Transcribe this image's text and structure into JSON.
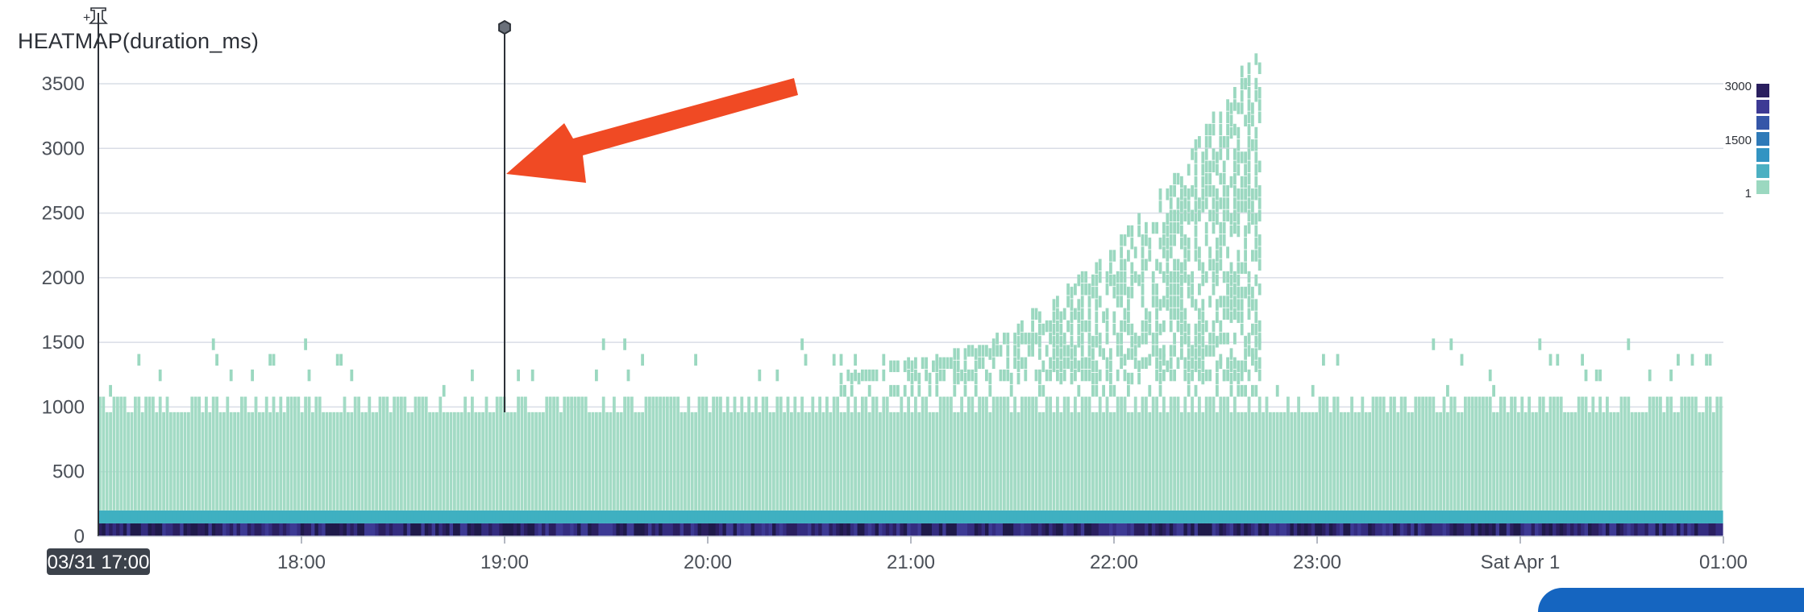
{
  "chart_data": {
    "type": "heatmap",
    "title": "HEATMAP(duration_ms)",
    "y_ticks": [
      0,
      500,
      1000,
      1500,
      2000,
      2500,
      3000,
      3500
    ],
    "ylim": [
      0,
      3700
    ],
    "x_start_label": "03/31 17:00",
    "x_ticks": [
      "18:00",
      "19:00",
      "20:00",
      "21:00",
      "22:00",
      "23:00",
      "Sat Apr 1",
      "01:00"
    ],
    "x_tick_hours": [
      18,
      19,
      20,
      21,
      22,
      23,
      24,
      25
    ],
    "xlim_hours": [
      17,
      25
    ],
    "bucket_ms": 120,
    "legend": {
      "ticks": [
        "3000",
        "1500",
        "1"
      ]
    },
    "marker_hour": 19.0,
    "profile": {
      "baseline_top_ms": 960,
      "spike_start_hour": 20.6,
      "spike_peak_hour": 22.68,
      "spike_peak_ms": 3420,
      "spike_end_hour": 22.72
    },
    "grid": true
  },
  "colors": {
    "low": "#9bd8c0",
    "mid": "#3fb0c1",
    "high": "#2f2b7a",
    "annotation_arrow": "#f04a24",
    "gridline": "#d9dde6",
    "legend": [
      "#2a1f5f",
      "#3d3a94",
      "#3556a8",
      "#2f7ab8",
      "#3394c2",
      "#4cb0c2",
      "#9bd8c0"
    ]
  },
  "icons": {
    "pin": "pin-icon",
    "marker": "hexagon-marker-icon"
  }
}
